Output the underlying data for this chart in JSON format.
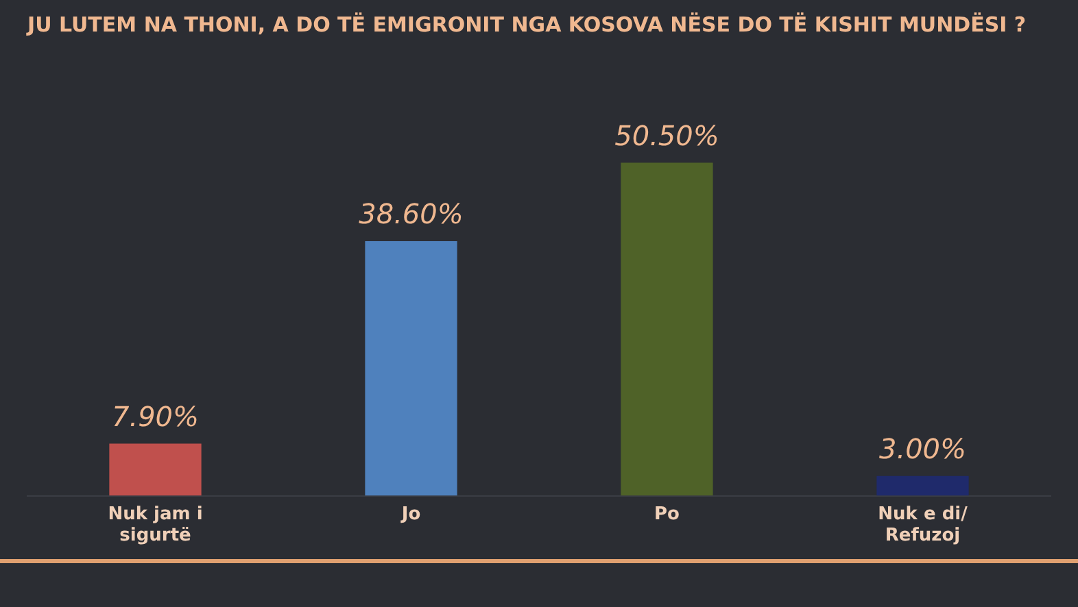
{
  "chart_data": {
    "type": "bar",
    "title": "JU LUTEM NA THONI, A DO TË EMIGRONIT NGA KOSOVA NËSE DO TË KISHIT MUNDËSI ?",
    "categories": [
      "Nuk jam i sigurtë",
      "Jo",
      "Po",
      "Nuk e di/ Refuzoj"
    ],
    "values": [
      7.9,
      38.6,
      50.5,
      3.0
    ],
    "colors": [
      "#c0504d",
      "#4f81bd",
      "#4f6228",
      "#1f2a6b"
    ],
    "value_labels": [
      "7.90%",
      "38.60%",
      "50.50%",
      "3.00%"
    ],
    "grid": false,
    "legend": false
  }
}
